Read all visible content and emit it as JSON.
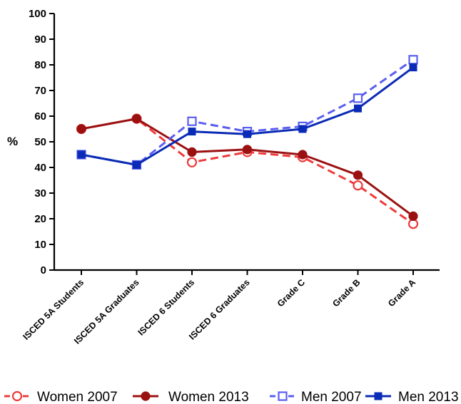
{
  "chart_data": {
    "type": "line",
    "ylabel": "%",
    "xlabel": "",
    "ylim": [
      0,
      100
    ],
    "yticks": [
      "0",
      "10",
      "20",
      "30",
      "40",
      "50",
      "60",
      "70",
      "80",
      "90",
      "100"
    ],
    "categories": [
      "ISCED 5A Students",
      "ISCED 5A Graduates",
      "ISCED 6 Students",
      "ISCED 6 Graduates",
      "Grade C",
      "Grade B",
      "Grade A"
    ],
    "series": [
      {
        "name": "Women 2007",
        "values": [
          55,
          59,
          42,
          46,
          44,
          33,
          18
        ],
        "color": "#ee3b3b",
        "dashed": true,
        "marker": "circle-open"
      },
      {
        "name": "Women 2013",
        "values": [
          55,
          59,
          46,
          47,
          45,
          37,
          21
        ],
        "color": "#9b1111",
        "dashed": false,
        "marker": "circle-filled"
      },
      {
        "name": "Men 2007",
        "values": [
          45,
          41,
          58,
          54,
          56,
          67,
          82
        ],
        "color": "#5a5ef0",
        "dashed": true,
        "marker": "square-open"
      },
      {
        "name": "Men 2013",
        "values": [
          45,
          41,
          54,
          53,
          55,
          63,
          79
        ],
        "color": "#0a2bb5",
        "dashed": false,
        "marker": "square-filled"
      }
    ],
    "legend_position": "bottom",
    "grid": false
  }
}
